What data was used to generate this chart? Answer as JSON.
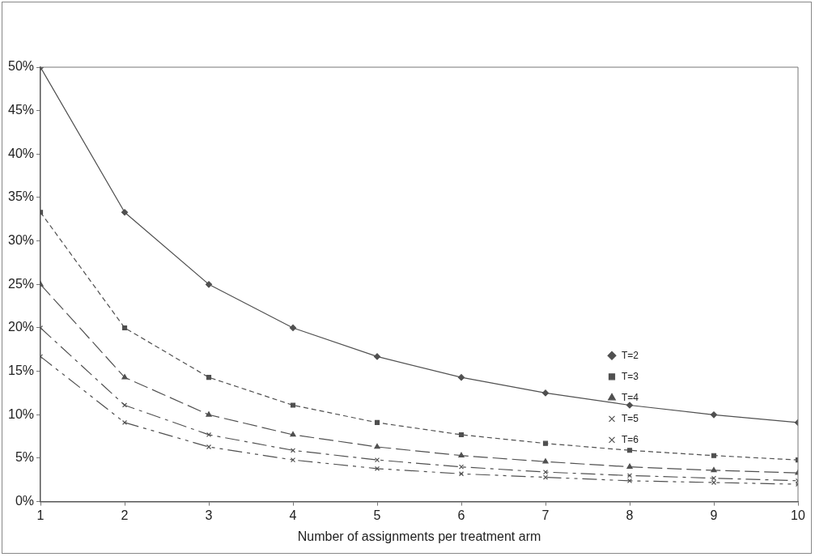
{
  "chart_data": {
    "type": "line",
    "xlabel": "Number of assignments per treatment arm",
    "x": [
      1,
      2,
      3,
      4,
      5,
      6,
      7,
      8,
      9,
      10
    ],
    "xlim": [
      1,
      10
    ],
    "xticks": [
      1,
      2,
      3,
      4,
      5,
      6,
      7,
      8,
      9,
      10
    ],
    "ylim": [
      0,
      50
    ],
    "yticks": [
      {
        "value": 0,
        "label": "0%"
      },
      {
        "value": 5,
        "label": "5%"
      },
      {
        "value": 10,
        "label": "10%"
      },
      {
        "value": 15,
        "label": "15%"
      },
      {
        "value": 20,
        "label": "20%"
      },
      {
        "value": 25,
        "label": "25%"
      },
      {
        "value": 30,
        "label": "30%"
      },
      {
        "value": 35,
        "label": "35%"
      },
      {
        "value": 40,
        "label": "40%"
      },
      {
        "value": 45,
        "label": "45%"
      },
      {
        "value": 50,
        "label": "50%"
      }
    ],
    "grid": false,
    "legend": "right",
    "series": [
      {
        "name": "T=2",
        "color": "#505050",
        "marker": "diamond",
        "line_style": "solid",
        "values": [
          50,
          33.3,
          25,
          20,
          16.7,
          14.3,
          12.5,
          11.1,
          10,
          9.1
        ]
      },
      {
        "name": "T=3",
        "color": "#505050",
        "marker": "square",
        "line_style": "dashed",
        "values": [
          33.3,
          20,
          14.3,
          11.1,
          9.1,
          7.7,
          6.7,
          5.9,
          5.3,
          4.8
        ]
      },
      {
        "name": "T=4",
        "color": "#505050",
        "marker": "triangle",
        "line_style": "dashed",
        "values": [
          25,
          14.3,
          10,
          7.7,
          6.3,
          5.3,
          4.6,
          4,
          3.6,
          3.3
        ]
      },
      {
        "name": "T=5",
        "color": "#505050",
        "marker": "cross",
        "line_style": "dashed",
        "values": [
          20,
          11.1,
          7.7,
          5.9,
          4.8,
          4,
          3.4,
          3,
          2.7,
          2.4
        ]
      },
      {
        "name": "T=6",
        "color": "#505050",
        "marker": "cross",
        "line_style": "dashed",
        "values": [
          16.7,
          9.1,
          6.3,
          4.8,
          3.8,
          3.2,
          2.8,
          2.4,
          2.2,
          2
        ]
      }
    ]
  }
}
